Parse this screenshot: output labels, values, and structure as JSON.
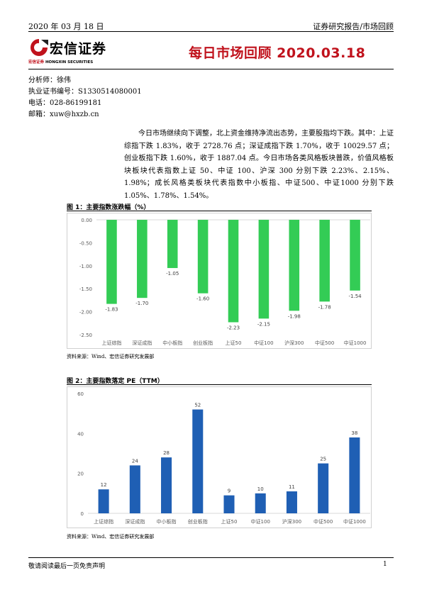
{
  "header": {
    "date": "2020 年 03 月 18 日",
    "report_type": "证券研究报告/市场回顾",
    "logo_cn": "宏信证券",
    "logo_en_a": "宏信证券",
    "logo_en_b": "HONGXIN SECURITIES",
    "title": "每日市场回顾 2020.03.18",
    "brand_red": "#c0121c"
  },
  "meta": {
    "analyst": "分析师：徐伟",
    "cert": "执业证书编号：S1330514080001",
    "phone": "电话：028-86199181",
    "email": "邮箱：xuw@hxzb.cn"
  },
  "summary": "今日市场继续向下调整，北上资金维持净流出态势，主要股指均下跌。其中：上证综指下跌 1.83%，收于 2728.76 点；深证成指下跌 1.70%，收于 10029.57 点；创业板指下跌 1.60%，收于 1887.04 点。今日市场各类风格板块普跌，价值风格板块板块代表指数上证 50、中证 100、沪深 300 分别下跌 2.23%、2.15%、1.98%；成长风格类板块代表指数中小板指、中证500、中证1000 分别下跌 1.05%、1.78%、1.54%。",
  "figures": {
    "fig1_title": "图 1：主要指数涨跌幅（%）",
    "fig1_source": "资料来源：Wind、宏信证券研究发展部",
    "fig2_title": "图 2：主要指数落定 PE（TTM）",
    "fig2_source": "资料来源：Wind、宏信证券研究发展部"
  },
  "footer": {
    "disclaimer": "敬请阅读最后一页免责声明",
    "page": "1"
  },
  "chart_data": [
    {
      "type": "bar",
      "title": "主要指数涨跌幅（%）",
      "categories": [
        "上证综指",
        "深证成指",
        "中小板指",
        "创业板指",
        "上证50",
        "中证100",
        "沪深300",
        "中证500",
        "中证1000"
      ],
      "values": [
        -1.83,
        -1.7,
        -1.05,
        -1.6,
        -2.23,
        -2.15,
        -1.98,
        -1.78,
        -1.54
      ],
      "value_labels": [
        "-1.83",
        "-1.70",
        "-1.05",
        "-1.60",
        "-2.23",
        "-2.15",
        "-1.98",
        "-1.78",
        "-1.54"
      ],
      "ylim": [
        -2.5,
        0
      ],
      "yticks": [
        0,
        -0.5,
        -1,
        -1.5,
        -2,
        -2.5
      ],
      "ytick_labels": [
        "0.00",
        "-0.50",
        "-1.00",
        "-1.50",
        "-2.00",
        "-2.50"
      ],
      "color": "#33cc55",
      "grid": false
    },
    {
      "type": "bar",
      "title": "主要指数落定 PE（TTM）",
      "categories": [
        "上证综指",
        "深证成指",
        "中小板指",
        "创业板指",
        "上证50",
        "中证100",
        "沪深300",
        "中证500",
        "中证1000"
      ],
      "values": [
        12,
        24,
        28,
        52,
        9,
        10,
        11,
        25,
        38
      ],
      "value_labels": [
        "12",
        "24",
        "28",
        "52",
        "9",
        "10",
        "11",
        "25",
        "38"
      ],
      "ylim": [
        0,
        60
      ],
      "yticks": [
        0,
        20,
        40,
        60
      ],
      "ytick_labels": [
        "0",
        "20",
        "40",
        "60"
      ],
      "color": "#1f5fb4",
      "grid": false
    }
  ]
}
